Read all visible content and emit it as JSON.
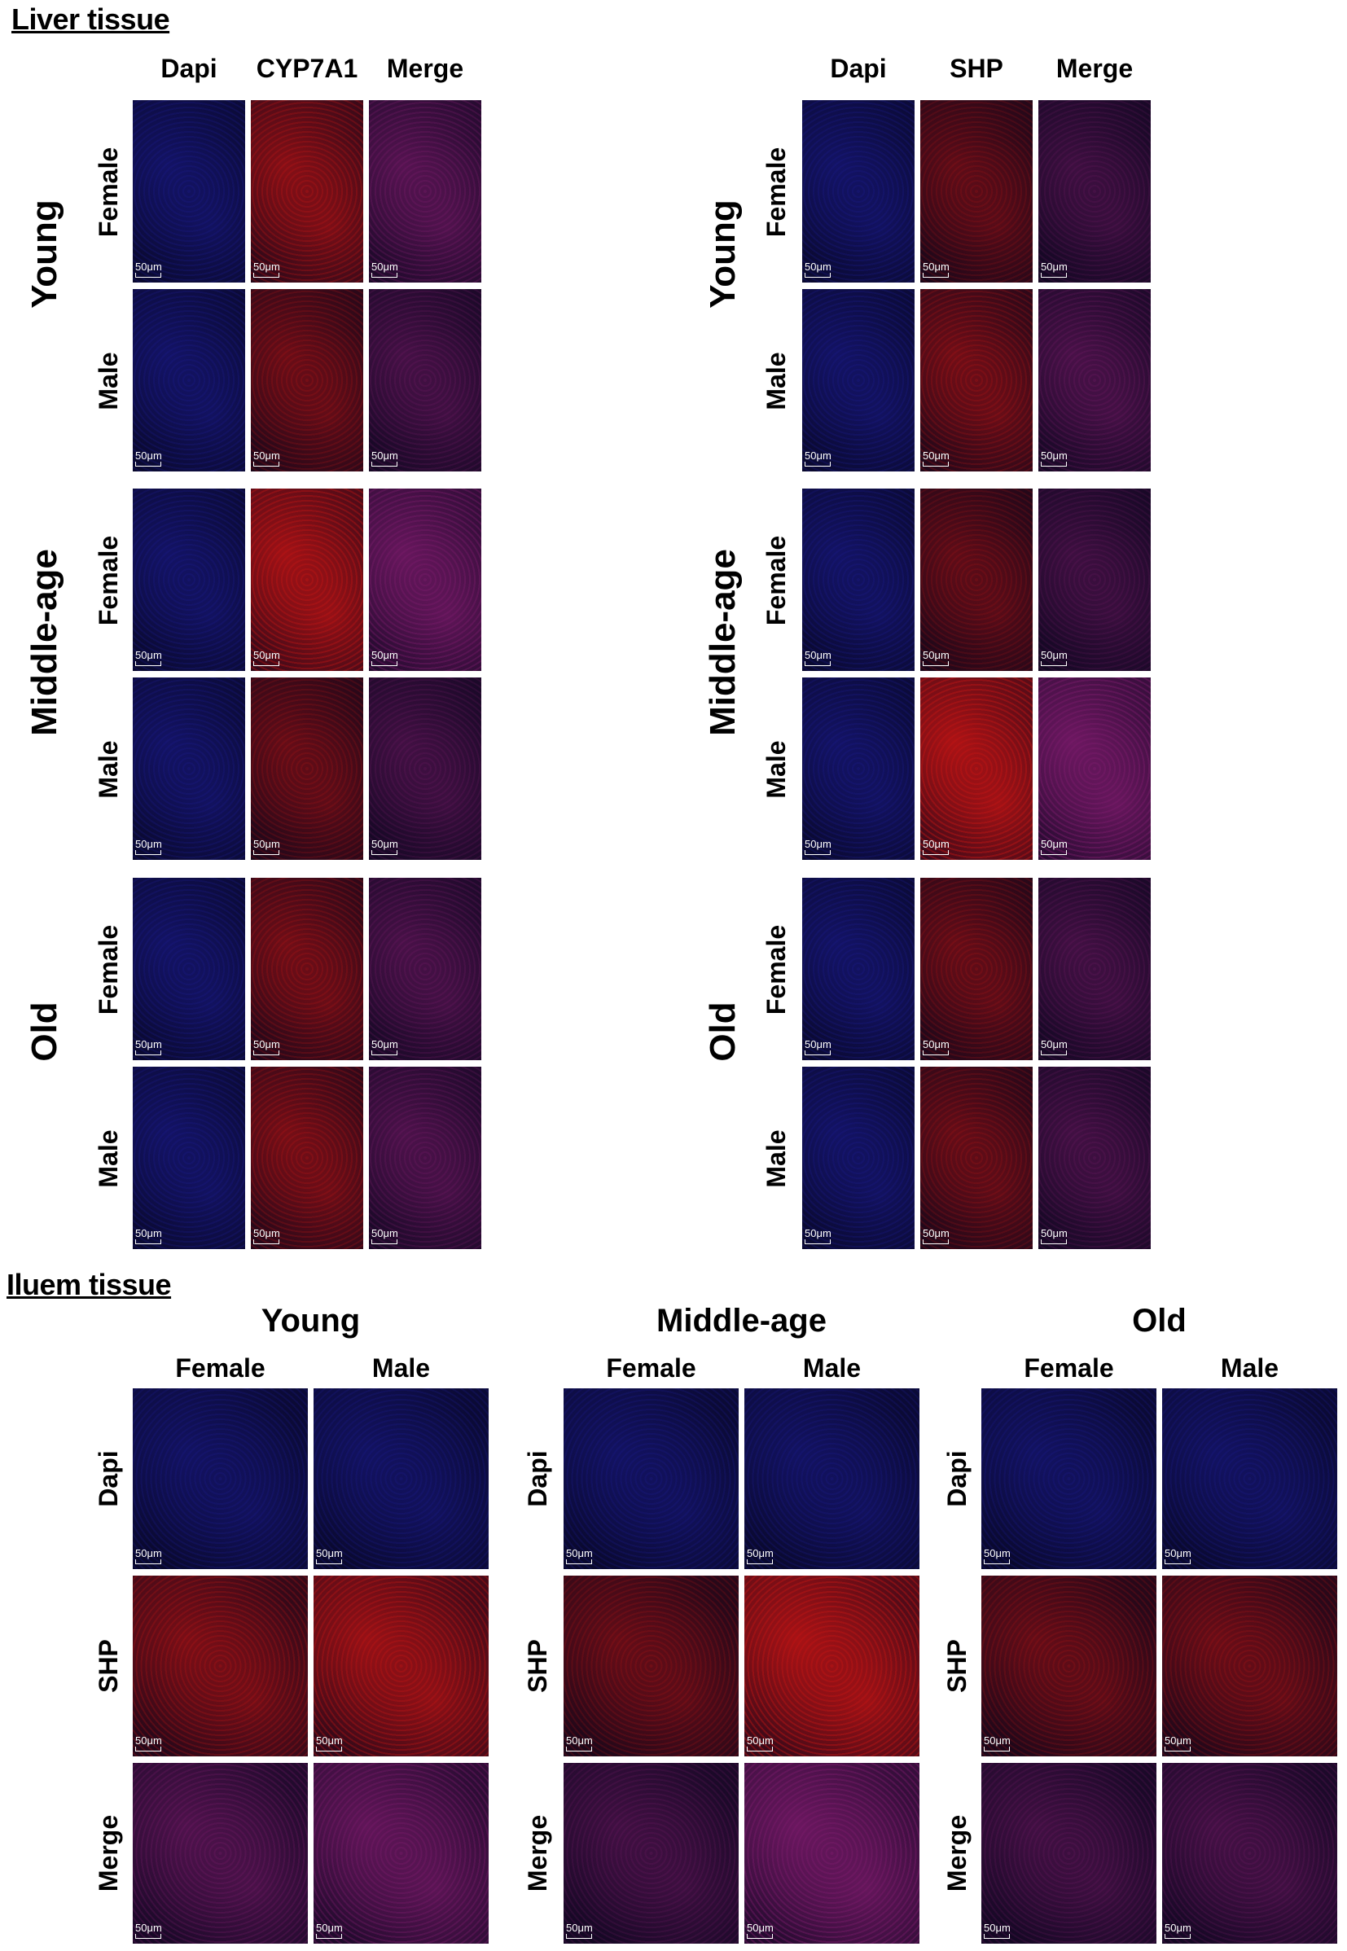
{
  "liver": {
    "title": "Liver tissue",
    "ages": [
      "Young",
      "Middle-age",
      "Old"
    ],
    "sexes": [
      "Female",
      "Male"
    ],
    "blocks": [
      {
        "columns": [
          "Dapi",
          "CYP7A1",
          "Merge"
        ]
      },
      {
        "columns": [
          "Dapi",
          "SHP",
          "Merge"
        ]
      }
    ]
  },
  "ileum": {
    "title": "Iluem tissue",
    "groups": [
      "Young",
      "Middle-age",
      "Old"
    ],
    "sexes": [
      "Female",
      "Male"
    ],
    "rows": [
      "Dapi",
      "SHP",
      "Merge"
    ]
  },
  "scale_bar": "50μm",
  "colors": {
    "dapi": "#1a1a8c",
    "marker": "#c01414",
    "merge": "#7a1a6a",
    "background": "#06051a"
  },
  "intensity_levels": {
    "liver_cyp7a1": [
      [
        0.55,
        0.3
      ],
      [
        0.85,
        0.25
      ],
      [
        0.35,
        0.4
      ]
    ],
    "liver_shp": [
      [
        0.2,
        0.35
      ],
      [
        0.2,
        1.0
      ],
      [
        0.25,
        0.25
      ]
    ],
    "ileum_shp": [
      [
        0.45,
        0.75
      ],
      [
        0.25,
        0.95
      ],
      [
        0.25,
        0.3
      ]
    ]
  }
}
